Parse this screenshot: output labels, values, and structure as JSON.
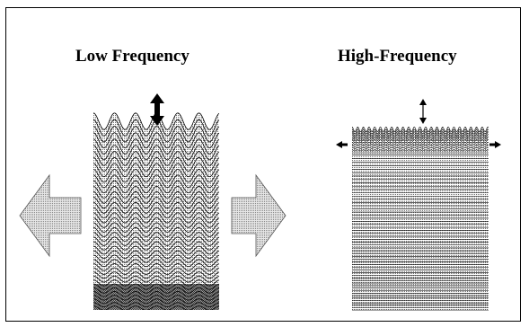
{
  "panels": {
    "low": {
      "title": "Low Frequency"
    },
    "high": {
      "title": "High-Frequency"
    }
  },
  "colors": {
    "ink": "#000000",
    "stipple": "#7a7a7a",
    "arrow_fill": "#cfcfcf",
    "background": "#ffffff"
  },
  "icons": [
    "up-down-arrow-icon",
    "left-arrow-icon",
    "right-arrow-icon"
  ]
}
